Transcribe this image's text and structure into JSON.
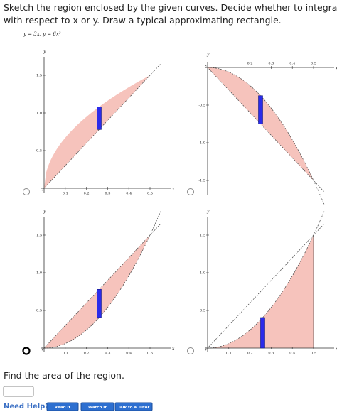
{
  "question": {
    "line1": "Sketch the region enclosed by the given curves. Decide whether to integrate",
    "line2": "with respect to x or y. Draw a typical approximating rectangle.",
    "equation": "y = 3x,  y = 6x²"
  },
  "options": [
    {
      "x_label": "x",
      "y_label": "y",
      "xticks": [
        "0.1",
        "0.2",
        "0.3",
        "0.4",
        "0.5"
      ],
      "yticks": [
        "0.5",
        "1.0",
        "1.5"
      ]
    },
    {
      "x_label": "x",
      "y_label": "y",
      "xticks": [
        "0.2",
        "0.3",
        "0.4",
        "0.5"
      ],
      "yticks": [
        "-0.5",
        "-1.0",
        "-1.5"
      ]
    },
    {
      "x_label": "x",
      "y_label": "y",
      "xticks": [
        "0.1",
        "0.2",
        "0.3",
        "0.4",
        "0.5"
      ],
      "yticks": [
        "0.5",
        "1.0",
        "1.5"
      ]
    },
    {
      "x_label": "x",
      "y_label": "y",
      "xticks": [
        "0.1",
        "0.2",
        "0.3",
        "0.4",
        "0.5"
      ],
      "yticks": [
        "0.5",
        "1.0",
        "1.5"
      ]
    }
  ],
  "answer": {
    "prompt": "Find the area of the region."
  },
  "help": {
    "label": "Need Help?",
    "buttons": [
      "Read It",
      "Watch It",
      "Talk to a Tutor"
    ]
  }
}
